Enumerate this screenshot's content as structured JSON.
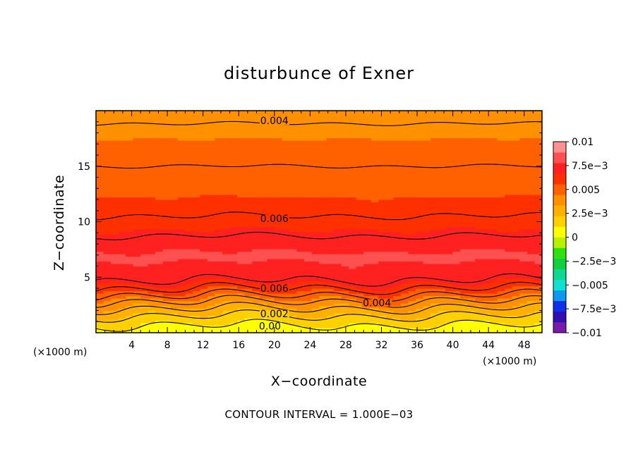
{
  "chart_data": {
    "type": "heatmap",
    "title": "disturbunce of Exner",
    "xlabel": "X−coordinate",
    "ylabel": "Z−coordinate",
    "x_unit": "(×1000 m)",
    "z_unit": "(×1000 m)",
    "xlim": [
      0,
      50
    ],
    "ylim": [
      0,
      20
    ],
    "x_ticks": [
      4,
      8,
      12,
      16,
      20,
      24,
      28,
      32,
      36,
      40,
      44,
      48
    ],
    "y_ticks": [
      5,
      10,
      15
    ],
    "contour_interval_text": "CONTOUR INTERVAL = 1.000E−03",
    "contour_interval": 0.001,
    "profile_z": [
      0,
      0.5,
      1,
      1.5,
      2,
      2.5,
      3,
      3.5,
      4,
      4.5,
      5,
      6,
      7,
      8,
      9,
      10,
      10.5,
      12,
      14,
      15,
      17,
      18.5,
      19.5,
      20
    ],
    "profile_value": [
      0.0002,
      0.0008,
      0.0014,
      0.002,
      0.0027,
      0.0035,
      0.0043,
      0.0052,
      0.006,
      0.0068,
      0.0072,
      0.0077,
      0.0079,
      0.0075,
      0.0068,
      0.0063,
      0.006,
      0.0056,
      0.0052,
      0.005,
      0.0046,
      0.0041,
      0.0038,
      0.0037
    ],
    "colorbar": {
      "labels": [
        "0.01",
        "7.5e−3",
        "0.005",
        "2.5e−3",
        "0",
        "−2.5e−3",
        "−0.005",
        "−7.5e−3",
        "−0.01"
      ],
      "label_values": [
        0.01,
        0.0075,
        0.005,
        0.0025,
        0,
        -0.0025,
        -0.005,
        -0.0075,
        -0.01
      ],
      "range": [
        -0.01,
        0.01
      ],
      "colors": [
        "#7a1aa8",
        "#3010b0",
        "#1030e8",
        "#1098f0",
        "#10e0d0",
        "#10d890",
        "#10d040",
        "#30e010",
        "#b8f000",
        "#ffff00",
        "#ffd000",
        "#ffb000",
        "#ff9000",
        "#ff6000",
        "#ff3000",
        "#ff2020",
        "#ff5050",
        "#ff9090"
      ]
    },
    "contour_labels": [
      {
        "text": "0.004",
        "x": 20,
        "z": 19.1
      },
      {
        "text": "0.006",
        "x": 20,
        "z": 10.3
      },
      {
        "text": "0.006",
        "x": 20,
        "z": 4.0
      },
      {
        "text": "0.004",
        "x": 31.5,
        "z": 2.7
      },
      {
        "text": "0.002",
        "x": 20,
        "z": 1.7
      },
      {
        "text": "0.00",
        "x": 19.5,
        "z": 0.6
      }
    ]
  }
}
